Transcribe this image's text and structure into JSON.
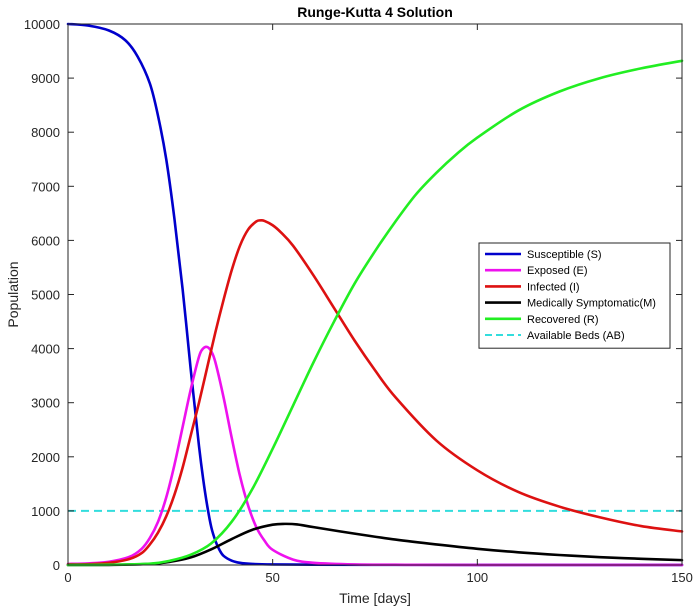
{
  "chart_data": {
    "type": "line",
    "title": "Runge-Kutta 4 Solution",
    "xlabel": "Time [days]",
    "ylabel": "Population",
    "xlim": [
      0,
      150
    ],
    "ylim": [
      0,
      10000
    ],
    "xticks": [
      0,
      50,
      100,
      150
    ],
    "yticks": [
      0,
      1000,
      2000,
      3000,
      4000,
      5000,
      6000,
      7000,
      8000,
      9000,
      10000
    ],
    "grid": false,
    "legend_position": "center-right",
    "series": [
      {
        "name": "Susceptible (S)",
        "color": "#0000cc",
        "style": "solid",
        "x": [
          0,
          5,
          10,
          14,
          17,
          20,
          22,
          24,
          26,
          28,
          30,
          31,
          32,
          33,
          34,
          35,
          36,
          37,
          38,
          40,
          42,
          45,
          50,
          60,
          80,
          100,
          150
        ],
        "y": [
          10000,
          9970,
          9880,
          9700,
          9400,
          8900,
          8300,
          7500,
          6400,
          5100,
          3600,
          2900,
          2200,
          1600,
          1100,
          700,
          450,
          280,
          170,
          80,
          40,
          20,
          10,
          5,
          3,
          2,
          2
        ]
      },
      {
        "name": "Exposed (E)",
        "color": "#ee11ee",
        "style": "solid",
        "x": [
          0,
          5,
          10,
          15,
          18,
          20,
          22,
          24,
          26,
          28,
          30,
          32,
          33,
          34,
          35,
          36,
          38,
          40,
          42,
          44,
          46,
          48,
          50,
          55,
          60,
          70,
          80,
          100,
          150
        ],
        "y": [
          20,
          30,
          60,
          150,
          300,
          500,
          800,
          1250,
          1850,
          2550,
          3250,
          3850,
          4000,
          4030,
          3950,
          3750,
          3100,
          2350,
          1650,
          1100,
          700,
          450,
          280,
          100,
          40,
          10,
          5,
          2,
          1
        ]
      },
      {
        "name": "Infected (I)",
        "color": "#dd1111",
        "style": "solid",
        "x": [
          0,
          5,
          10,
          15,
          18,
          20,
          22,
          24,
          26,
          28,
          30,
          32,
          34,
          36,
          38,
          40,
          42,
          44,
          46,
          47,
          48,
          50,
          52,
          55,
          60,
          65,
          70,
          75,
          80,
          90,
          100,
          110,
          120,
          130,
          140,
          150
        ],
        "y": [
          10,
          15,
          40,
          110,
          220,
          380,
          600,
          900,
          1300,
          1800,
          2400,
          3000,
          3650,
          4300,
          4900,
          5450,
          5900,
          6200,
          6350,
          6370,
          6360,
          6280,
          6150,
          5900,
          5350,
          4750,
          4150,
          3600,
          3100,
          2300,
          1750,
          1350,
          1080,
          880,
          720,
          620
        ]
      },
      {
        "name": "Medically Symptomatic(M)",
        "color": "#000000",
        "style": "solid",
        "x": [
          0,
          10,
          20,
          25,
          30,
          35,
          40,
          45,
          50,
          53,
          56,
          60,
          70,
          80,
          90,
          100,
          110,
          120,
          130,
          140,
          150
        ],
        "y": [
          0,
          2,
          20,
          60,
          140,
          290,
          480,
          650,
          745,
          760,
          750,
          700,
          580,
          470,
          380,
          300,
          235,
          185,
          145,
          115,
          90
        ]
      },
      {
        "name": "Recovered (R)",
        "color": "#22ee22",
        "style": "solid",
        "x": [
          0,
          10,
          20,
          25,
          30,
          35,
          40,
          45,
          50,
          55,
          60,
          65,
          70,
          75,
          80,
          85,
          90,
          95,
          100,
          110,
          120,
          130,
          140,
          150
        ],
        "y": [
          0,
          5,
          25,
          80,
          190,
          400,
          800,
          1400,
          2150,
          2950,
          3750,
          4500,
          5200,
          5800,
          6350,
          6850,
          7250,
          7600,
          7900,
          8400,
          8750,
          9000,
          9180,
          9320
        ]
      },
      {
        "name": "Available Beds (AB)",
        "color": "#33dddd",
        "style": "dashed",
        "x": [
          0,
          150
        ],
        "y": [
          1000,
          1000
        ]
      }
    ]
  }
}
